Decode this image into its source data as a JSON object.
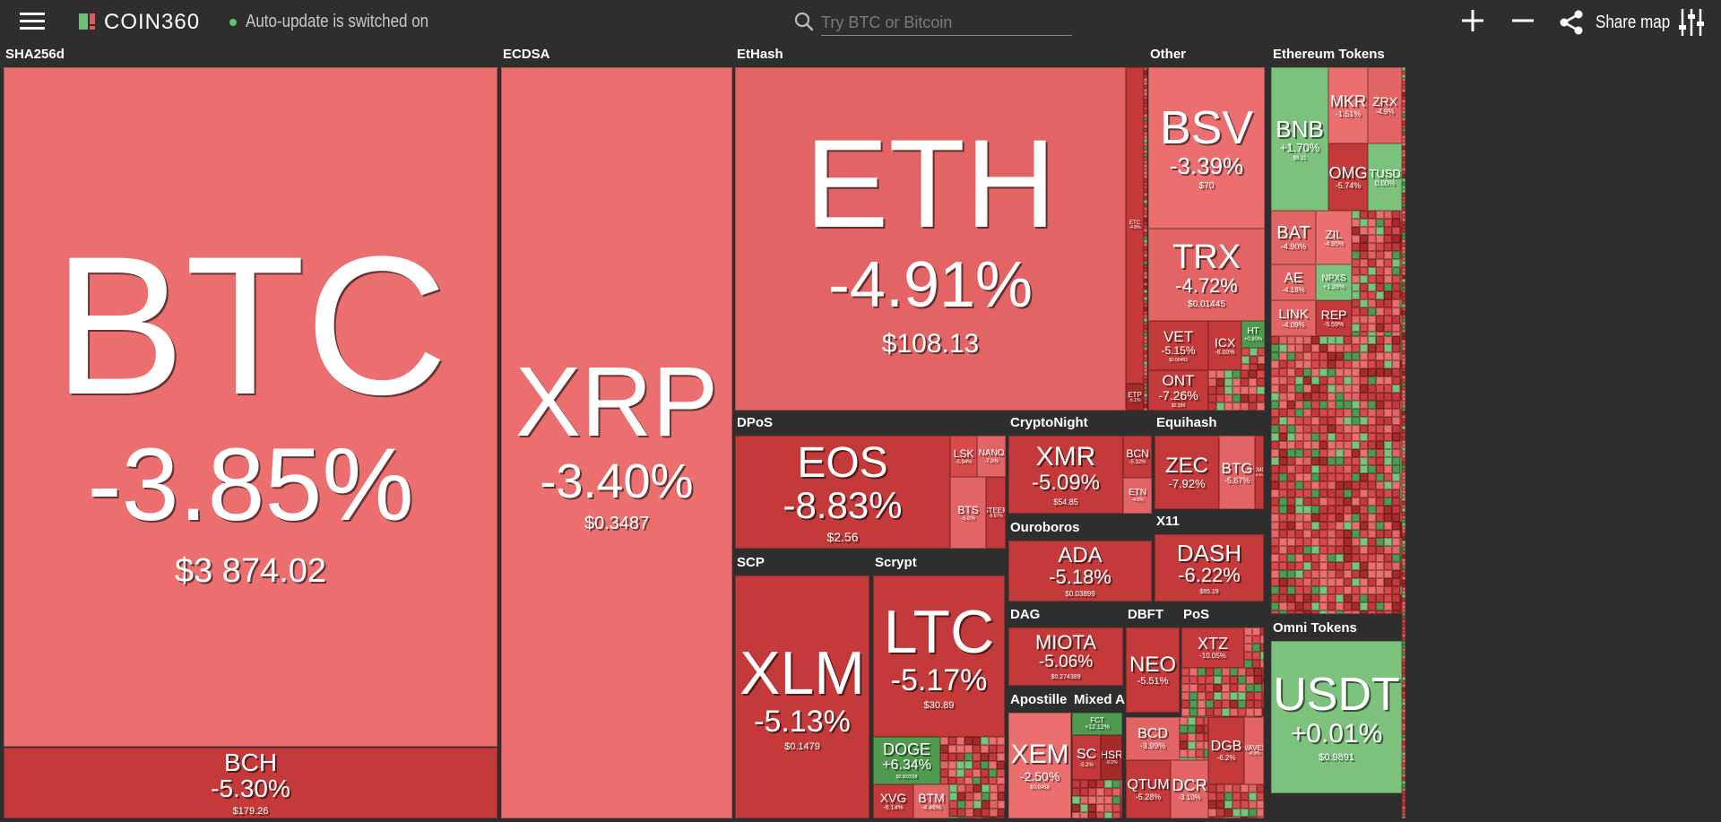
{
  "header": {
    "logo_text": "COIN360",
    "auto_update": "Auto-update is switched on",
    "search_placeholder": "Try BTC or Bitcoin",
    "share_label": "Share map",
    "icons": [
      "menu-icon",
      "logo-icon",
      "status-dot-icon",
      "search-icon",
      "zoom-in-icon",
      "zoom-out-icon",
      "share-icon",
      "settings-sliders-icon"
    ]
  },
  "colors": {
    "background": "#2e2e2e",
    "red_light": "#ec6f6f",
    "red_mid": "#d84a4a",
    "red_dark": "#c43a3a",
    "red_deep": "#a52a2a",
    "green_light": "#7cc27c",
    "green_mid": "#4f9a4f",
    "green_dark": "#2f7a2f"
  },
  "groups": [
    {
      "id": "sha256d",
      "label": "SHA256d"
    },
    {
      "id": "ecdsa",
      "label": "ECDSA"
    },
    {
      "id": "ethash",
      "label": "EtHash"
    },
    {
      "id": "other",
      "label": "Other"
    },
    {
      "id": "ethtokens",
      "label": "Ethereum Tokens"
    },
    {
      "id": "dpos",
      "label": "DPoS"
    },
    {
      "id": "cryptonight",
      "label": "CryptoNight"
    },
    {
      "id": "equihash",
      "label": "Equihash"
    },
    {
      "id": "ouroboros",
      "label": "Ouroboros"
    },
    {
      "id": "x11",
      "label": "X11"
    },
    {
      "id": "scp",
      "label": "SCP"
    },
    {
      "id": "scrypt",
      "label": "Scrypt"
    },
    {
      "id": "dag",
      "label": "DAG"
    },
    {
      "id": "dbft",
      "label": "DBFT"
    },
    {
      "id": "pos",
      "label": "PoS"
    },
    {
      "id": "apostille",
      "label": "Apostille"
    },
    {
      "id": "mixed",
      "label": "Mixed Alg..."
    },
    {
      "id": "omni",
      "label": "Omni Tokens"
    }
  ],
  "tiles": [
    {
      "sym": "BTC",
      "chg": "-3.85%",
      "price": "$3 874.02",
      "color": "#ec6f6f"
    },
    {
      "sym": "BCH",
      "chg": "-5.30%",
      "price": "$179.26",
      "color": "#c43a3a"
    },
    {
      "sym": "XRP",
      "chg": "-3.40%",
      "price": "$0.3487",
      "color": "#ec6f6f"
    },
    {
      "sym": "ETH",
      "chg": "-4.91%",
      "price": "$108.13",
      "color": "#e36464"
    },
    {
      "sym": "ETC",
      "chg": "-4.8%",
      "price": "",
      "color": "#c43a3a"
    },
    {
      "sym": "ETP",
      "chg": "-5.1%",
      "price": "",
      "color": "#a52a2a"
    },
    {
      "sym": "BSV",
      "chg": "-3.39%",
      "price": "$70",
      "color": "#ec6f6f"
    },
    {
      "sym": "TRX",
      "chg": "-4.72%",
      "price": "$0.01445",
      "color": "#e36464"
    },
    {
      "sym": "VET",
      "chg": "-5.15%",
      "price": "$0.00453",
      "color": "#c43a3a"
    },
    {
      "sym": "ICX",
      "chg": "-6.00%",
      "price": "",
      "color": "#c43a3a"
    },
    {
      "sym": "HT",
      "chg": "+0.80%",
      "price": "",
      "color": "#4f9a4f"
    },
    {
      "sym": "ONT",
      "chg": "-7.26%",
      "price": "$0.399",
      "color": "#c43a3a"
    },
    {
      "sym": "BNB",
      "chg": "+1.70%",
      "price": "$6.21",
      "color": "#7cc27c"
    },
    {
      "sym": "MKR",
      "chg": "-1.51%",
      "price": "",
      "color": "#ec6f6f"
    },
    {
      "sym": "ZRX",
      "chg": "-4.9%",
      "price": "",
      "color": "#e36464"
    },
    {
      "sym": "OMG",
      "chg": "-5.74%",
      "price": "",
      "color": "#c43a3a"
    },
    {
      "sym": "TUSD",
      "chg": "0.00%",
      "price": "",
      "color": "#7cc27c"
    },
    {
      "sym": "BAT",
      "chg": "-4.90%",
      "price": "",
      "color": "#e36464"
    },
    {
      "sym": "ZIL",
      "chg": "-4.95%",
      "price": "",
      "color": "#ec6f6f"
    },
    {
      "sym": "AE",
      "chg": "-4.18%",
      "price": "",
      "color": "#e36464"
    },
    {
      "sym": "NPXS",
      "chg": "+1.39%",
      "price": "",
      "color": "#7cc27c"
    },
    {
      "sym": "LINK",
      "chg": "-4.09%",
      "price": "",
      "color": "#e36464"
    },
    {
      "sym": "REP",
      "chg": "-5.59%",
      "price": "",
      "color": "#c43a3a"
    },
    {
      "sym": "EOS",
      "chg": "-8.83%",
      "price": "$2.56",
      "color": "#c43a3a"
    },
    {
      "sym": "LSK",
      "chg": "-5.94%",
      "price": "",
      "color": "#d84a4a"
    },
    {
      "sym": "NANO",
      "chg": "-7.0%",
      "price": "",
      "color": "#e36464"
    },
    {
      "sym": "BTS",
      "chg": "-5.0%",
      "price": "",
      "color": "#e36464"
    },
    {
      "sym": "STEEM",
      "chg": "-5.87%",
      "price": "",
      "color": "#c43a3a"
    },
    {
      "sym": "XMR",
      "chg": "-5.09%",
      "price": "$54.85",
      "color": "#c43a3a"
    },
    {
      "sym": "BCN",
      "chg": "-5.32%",
      "price": "",
      "color": "#c43a3a"
    },
    {
      "sym": "ETN",
      "chg": "-4.6%",
      "price": "",
      "color": "#e36464"
    },
    {
      "sym": "ZEC",
      "chg": "-7.92%",
      "price": "",
      "color": "#c43a3a"
    },
    {
      "sym": "BTG",
      "chg": "-5.67%",
      "price": "",
      "color": "#e36464"
    },
    {
      "sym": "KMD",
      "chg": "-6.1%",
      "price": "",
      "color": "#c43a3a"
    },
    {
      "sym": "ADA",
      "chg": "-5.18%",
      "price": "$0.03899",
      "color": "#c43a3a"
    },
    {
      "sym": "DASH",
      "chg": "-6.22%",
      "price": "$85.19",
      "color": "#c43a3a"
    },
    {
      "sym": "XLM",
      "chg": "-5.13%",
      "price": "$0.1479",
      "color": "#c43a3a"
    },
    {
      "sym": "LTC",
      "chg": "-5.17%",
      "price": "$30.89",
      "color": "#c43a3a"
    },
    {
      "sym": "DOGE",
      "chg": "+6.34%",
      "price": "$0.002558",
      "color": "#4f9a4f"
    },
    {
      "sym": "XVG",
      "chg": "-6.14%",
      "price": "",
      "color": "#c43a3a"
    },
    {
      "sym": "BTM",
      "chg": "-4.46%",
      "price": "",
      "color": "#e36464"
    },
    {
      "sym": "MIOTA",
      "chg": "-5.06%",
      "price": "$0.274389",
      "color": "#c43a3a"
    },
    {
      "sym": "NEO",
      "chg": "-5.51%",
      "price": "",
      "color": "#c43a3a"
    },
    {
      "sym": "XTZ",
      "chg": "-10.05%",
      "price": "",
      "color": "#c43a3a"
    },
    {
      "sym": "XEM",
      "chg": "-2.50%",
      "price": "$0.0458",
      "color": "#ec6f6f"
    },
    {
      "sym": "FCT",
      "chg": "+12.12%",
      "price": "",
      "color": "#4f9a4f"
    },
    {
      "sym": "SC",
      "chg": "-5.2%",
      "price": "",
      "color": "#c43a3a"
    },
    {
      "sym": "HSR",
      "chg": "-9.2%",
      "price": "",
      "color": "#a52a2a"
    },
    {
      "sym": "BCD",
      "chg": "-3.99%",
      "price": "",
      "color": "#e36464"
    },
    {
      "sym": "DGB",
      "chg": "-6.2%",
      "price": "",
      "color": "#c43a3a"
    },
    {
      "sym": "WAVES",
      "chg": "-4.9%",
      "price": "",
      "color": "#e36464"
    },
    {
      "sym": "QTUM",
      "chg": "-5.28%",
      "price": "",
      "color": "#c43a3a"
    },
    {
      "sym": "DCR",
      "chg": "-3.10%",
      "price": "",
      "color": "#e36464"
    },
    {
      "sym": "USDT",
      "chg": "+0.01%",
      "price": "$0.9891",
      "color": "#7cc27c"
    }
  ]
}
